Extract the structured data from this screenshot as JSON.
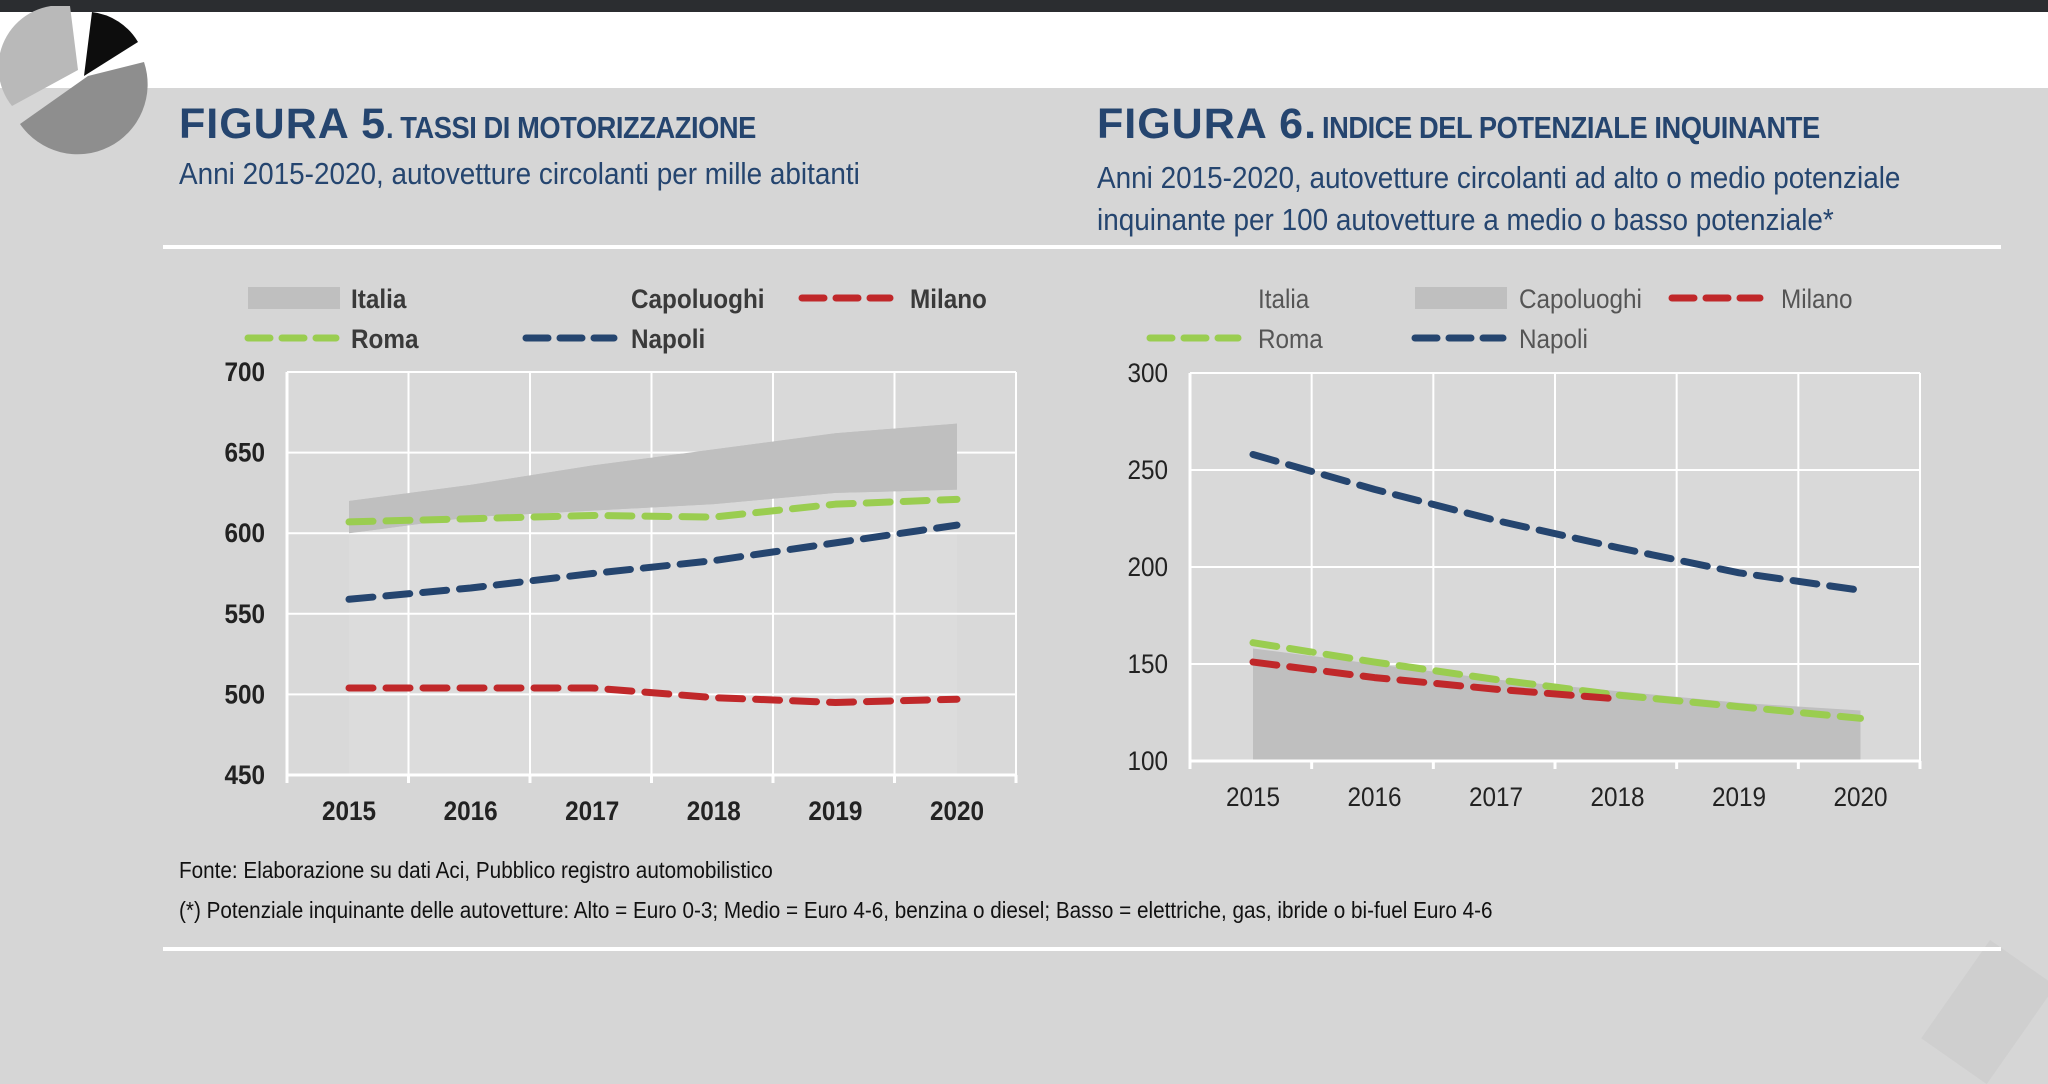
{
  "figure5": {
    "num": "FIGURA 5",
    "title": ". TASSI DI MOTORIZZAZIONE",
    "subtitle": "Anni 2015-2020, autovetture circolanti per mille abitanti"
  },
  "figure6": {
    "num": "FIGURA 6.",
    "title": "INDICE DEL POTENZIALE INQUINANTE",
    "subtitle_line1": "Anni 2015-2020, autovetture circolanti ad alto o medio potenziale",
    "subtitle_line2": "inquinante per 100 autovetture a medio o basso potenziale*"
  },
  "notes": {
    "source": "Fonte: Elaborazione su dati Aci, Pubblico registro automobilistico",
    "footnote": "(*) Potenziale inquinante delle autovetture: Alto = Euro 0-3; Medio = Euro 4-6, benzina o diesel; Basso = elettriche, gas, ibride o bi-fuel Euro 4-6"
  },
  "colors": {
    "navy": "#25456f",
    "band": "#bfbfbf",
    "milano": "#c0282a",
    "roma": "#9acd50",
    "napoli": "#25456f",
    "plot_bg": "#d9d9d9"
  },
  "chart_data": [
    {
      "type": "line",
      "title": "TASSI DI MOTORIZZAZIONE",
      "xlabel": "",
      "ylabel": "",
      "categories": [
        "2015",
        "2016",
        "2017",
        "2018",
        "2019",
        "2020"
      ],
      "ylim": [
        450,
        700
      ],
      "yticks": [
        450,
        500,
        550,
        600,
        650,
        700
      ],
      "grid": true,
      "legend_position": "top",
      "legend_bold": true,
      "legend": [
        {
          "label": "Italia",
          "kind": "area",
          "row": 0,
          "col": 0
        },
        {
          "label": "Capoluoghi",
          "kind": "none",
          "row": 0,
          "col": 1
        },
        {
          "label": "Milano",
          "kind": "dash",
          "color": "#c0282a",
          "row": 0,
          "col": 2
        },
        {
          "label": "Roma",
          "kind": "dash",
          "color": "#9acd50",
          "row": 1,
          "col": 0
        },
        {
          "label": "Napoli",
          "kind": "dash",
          "color": "#25456f",
          "row": 1,
          "col": 1
        }
      ],
      "band": {
        "name": "Italia",
        "upper": [
          620,
          630,
          642,
          652,
          662,
          668
        ],
        "lower": [
          600,
          610,
          614,
          618,
          625,
          627
        ]
      },
      "series": [
        {
          "name": "Roma",
          "color": "#9acd50",
          "values": [
            607,
            609,
            611,
            610,
            618,
            621
          ]
        },
        {
          "name": "Napoli",
          "color": "#25456f",
          "values": [
            559,
            566,
            575,
            583,
            594,
            605
          ]
        },
        {
          "name": "Milano",
          "color": "#c0282a",
          "values": [
            504,
            504,
            504,
            498,
            495,
            497
          ]
        }
      ]
    },
    {
      "type": "line",
      "title": "INDICE DEL POTENZIALE INQUINANTE",
      "xlabel": "",
      "ylabel": "",
      "categories": [
        "2015",
        "2016",
        "2017",
        "2018",
        "2019",
        "2020"
      ],
      "ylim": [
        100,
        300
      ],
      "yticks": [
        100,
        150,
        200,
        250,
        300
      ],
      "grid": true,
      "legend_position": "top",
      "legend_bold": false,
      "legend": [
        {
          "label": "Italia",
          "kind": "none",
          "row": 0,
          "col": 0
        },
        {
          "label": "Capoluoghi",
          "kind": "area",
          "row": 0,
          "col": 1
        },
        {
          "label": "Milano",
          "kind": "dash",
          "color": "#c0282a",
          "row": 0,
          "col": 2
        },
        {
          "label": "Roma",
          "kind": "dash",
          "color": "#9acd50",
          "row": 1,
          "col": 0
        },
        {
          "label": "Napoli",
          "kind": "dash",
          "color": "#25456f",
          "row": 1,
          "col": 1
        }
      ],
      "area": {
        "name": "Capoluoghi",
        "values": [
          158,
          150,
          142,
          136,
          130,
          126
        ]
      },
      "series": [
        {
          "name": "Napoli",
          "color": "#25456f",
          "values": [
            258,
            240,
            224,
            210,
            197,
            188
          ]
        },
        {
          "name": "Roma",
          "color": "#9acd50",
          "values": [
            161,
            151,
            142,
            134,
            128,
            122
          ]
        },
        {
          "name": "Milano",
          "color": "#c0282a",
          "values": [
            151,
            143,
            137,
            132,
            null,
            null
          ]
        }
      ]
    }
  ]
}
